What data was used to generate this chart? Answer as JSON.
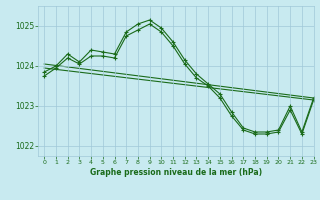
{
  "background_color": "#c8eaf0",
  "grid_color": "#a0c8d8",
  "line_color": "#1a6b1a",
  "title": "Graphe pression niveau de la mer (hPa)",
  "xlim": [
    -0.5,
    23
  ],
  "ylim": [
    1021.75,
    1025.5
  ],
  "yticks": [
    1022,
    1023,
    1024,
    1025
  ],
  "xticks": [
    0,
    1,
    2,
    3,
    4,
    5,
    6,
    7,
    8,
    9,
    10,
    11,
    12,
    13,
    14,
    15,
    16,
    17,
    18,
    19,
    20,
    21,
    22,
    23
  ],
  "line1_x": [
    0,
    1,
    2,
    3,
    4,
    5,
    6,
    7,
    8,
    9,
    10,
    11,
    12,
    13,
    14,
    15,
    16,
    17,
    18,
    19,
    20,
    21,
    22,
    23
  ],
  "line1_y": [
    1023.85,
    1024.0,
    1024.3,
    1024.1,
    1024.4,
    1024.35,
    1024.3,
    1024.85,
    1025.05,
    1025.15,
    1024.95,
    1024.6,
    1024.15,
    1023.8,
    1023.55,
    1023.3,
    1022.85,
    1022.45,
    1022.35,
    1022.35,
    1022.4,
    1023.0,
    1022.35,
    1023.2
  ],
  "line2_x": [
    0,
    1,
    2,
    3,
    4,
    5,
    6,
    7,
    8,
    9,
    10,
    11,
    12,
    13,
    14,
    15,
    16,
    17,
    18,
    19,
    20,
    21,
    22,
    23
  ],
  "line2_y": [
    1023.75,
    1023.95,
    1024.2,
    1024.05,
    1024.25,
    1024.25,
    1024.2,
    1024.75,
    1024.9,
    1025.05,
    1024.85,
    1024.5,
    1024.05,
    1023.7,
    1023.5,
    1023.2,
    1022.75,
    1022.4,
    1022.3,
    1022.3,
    1022.35,
    1022.9,
    1022.3,
    1023.15
  ],
  "line3_x": [
    0,
    23
  ],
  "line3_y": [
    1024.05,
    1023.2
  ],
  "line4_x": [
    0,
    23
  ],
  "line4_y": [
    1023.95,
    1023.15
  ]
}
